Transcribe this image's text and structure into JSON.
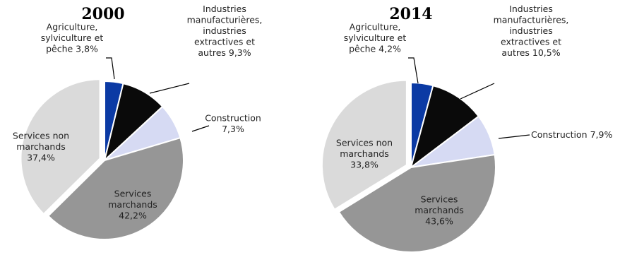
{
  "chart_data": [
    {
      "type": "pie",
      "title": "2000",
      "slices": [
        {
          "name": "Agriculture, sylviculture et pêche",
          "value": 3.8,
          "label_lines": [
            "Agriculture,",
            "sylviculture et",
            "pêche 3,8%"
          ],
          "color": "#0b3aa4"
        },
        {
          "name": "Industries manufacturières, industries extractives et autres",
          "value": 9.3,
          "label_lines": [
            "Industries",
            "manufacturières,",
            "industries",
            "extractives et",
            "autres 9,3%"
          ],
          "color": "#0a0a0a"
        },
        {
          "name": "Construction",
          "value": 7.3,
          "label_lines": [
            "Construction",
            "7,3%"
          ],
          "color": "#d6daf3"
        },
        {
          "name": "Services marchands",
          "value": 42.2,
          "label_lines": [
            "Services",
            "marchands",
            "42,2%"
          ],
          "color": "#969696"
        },
        {
          "name": "Services non marchands",
          "value": 37.4,
          "label_lines": [
            "Services non",
            "marchands",
            "37,4%"
          ],
          "color": "#dadada"
        }
      ]
    },
    {
      "type": "pie",
      "title": "2014",
      "slices": [
        {
          "name": "Agriculture, sylviculture et pêche",
          "value": 4.2,
          "label_lines": [
            "Agriculture,",
            "sylviculture et",
            "pêche 4,2%"
          ],
          "color": "#0b3aa4"
        },
        {
          "name": "Industries manufacturières, industries extractives et autres",
          "value": 10.5,
          "label_lines": [
            "Industries",
            "manufacturières,",
            "industries",
            "extractives et",
            "autres 10,5%"
          ],
          "color": "#0a0a0a"
        },
        {
          "name": "Construction",
          "value": 7.9,
          "label_lines": [
            "Construction 7,9%"
          ],
          "color": "#d6daf3"
        },
        {
          "name": "Services marchands",
          "value": 43.6,
          "label_lines": [
            "Services",
            "marchands",
            "43,6%"
          ],
          "color": "#969696"
        },
        {
          "name": "Services non marchands",
          "value": 33.8,
          "label_lines": [
            "Services non",
            "marchands",
            "33,8%"
          ],
          "color": "#dadada"
        }
      ]
    }
  ]
}
